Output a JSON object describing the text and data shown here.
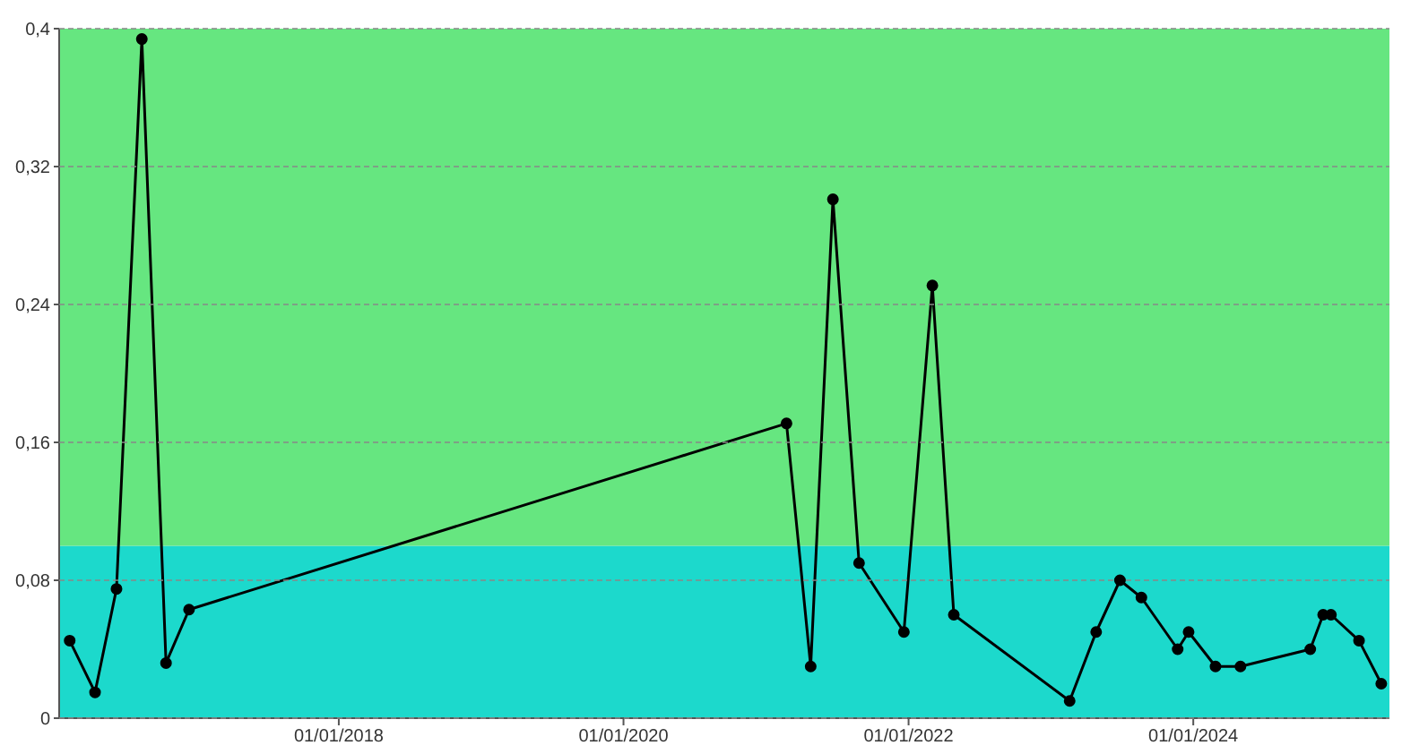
{
  "chart_data": {
    "type": "line",
    "x": [
      "2016-02-11",
      "2016-04-16",
      "2016-06-10",
      "2016-08-14",
      "2016-10-15",
      "2016-12-13",
      "2021-02-22",
      "2021-04-25",
      "2021-06-21",
      "2021-08-27",
      "2021-12-20",
      "2022-03-03",
      "2022-04-27",
      "2023-02-18",
      "2023-04-27",
      "2023-06-27",
      "2023-08-21",
      "2023-11-22",
      "2023-12-20",
      "2024-02-27",
      "2024-05-01",
      "2024-10-27",
      "2024-11-29",
      "2024-12-19",
      "2025-03-01",
      "2025-04-27"
    ],
    "series": [
      {
        "color": "#000000",
        "values": [
          0.045,
          0.015,
          0.075,
          0.394,
          0.032,
          0.063,
          0.171,
          0.03,
          0.301,
          0.09,
          0.05,
          0.251,
          0.06,
          0.01,
          0.05,
          0.08,
          0.07,
          0.04,
          0.05,
          0.03,
          0.03,
          0.04,
          0.06,
          0.06,
          0.045,
          0.02
        ]
      }
    ],
    "xlim": [
      "2016-01-15",
      "2025-05-18"
    ],
    "xticks": [
      {
        "value": "2018-01-01",
        "label": "01/01/2018"
      },
      {
        "value": "2020-01-01",
        "label": "01/01/2020"
      },
      {
        "value": "2022-01-01",
        "label": "01/01/2022"
      },
      {
        "value": "2024-01-01",
        "label": "01/01/2024"
      }
    ],
    "ylim": [
      0,
      0.4
    ],
    "yticks": [
      {
        "value": 0,
        "label": "0"
      },
      {
        "value": 0.08,
        "label": "0,08"
      },
      {
        "value": 0.16,
        "label": "0,16"
      },
      {
        "value": 0.24,
        "label": "0,24"
      },
      {
        "value": 0.32,
        "label": "0,32"
      },
      {
        "value": 0.4,
        "label": "0,4"
      }
    ],
    "bands": [
      {
        "axis": "y",
        "from": 0,
        "to": 0.1,
        "color": "#1cd9cc"
      },
      {
        "axis": "y",
        "from": 0.1,
        "to": 0.4,
        "color": "#66e680"
      }
    ],
    "grid": "y",
    "marker": "circle",
    "line_style": "solid",
    "legend": false
  }
}
